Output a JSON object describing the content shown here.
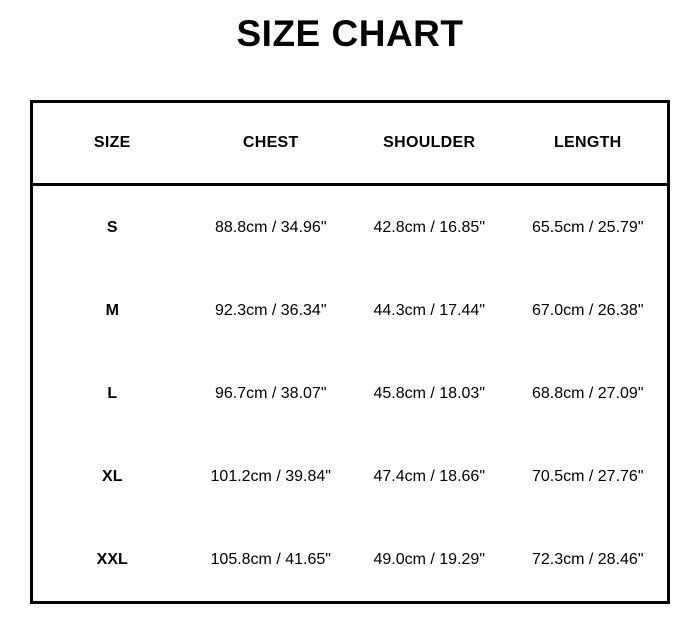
{
  "title": "SIZE CHART",
  "colors": {
    "background": "#ffffff",
    "text": "#000000",
    "border": "#000000"
  },
  "chart_data": {
    "type": "table",
    "title": "SIZE CHART",
    "columns": [
      "SIZE",
      "CHEST",
      "SHOULDER",
      "LENGTH"
    ],
    "rows": [
      {
        "size": "S",
        "chest": "88.8cm / 34.96\"",
        "shoulder": "42.8cm / 16.85\"",
        "length": "65.5cm / 25.79\""
      },
      {
        "size": "M",
        "chest": "92.3cm / 36.34\"",
        "shoulder": "44.3cm / 17.44\"",
        "length": "67.0cm / 26.38\""
      },
      {
        "size": "L",
        "chest": "96.7cm / 38.07\"",
        "shoulder": "45.8cm / 18.03\"",
        "length": "68.8cm / 27.09\""
      },
      {
        "size": "XL",
        "chest": "101.2cm / 39.84\"",
        "shoulder": "47.4cm / 18.66\"",
        "length": "70.5cm / 27.76\""
      },
      {
        "size": "XXL",
        "chest": "105.8cm / 41.65\"",
        "shoulder": "49.0cm / 19.29\"",
        "length": "72.3cm / 28.46\""
      }
    ]
  }
}
